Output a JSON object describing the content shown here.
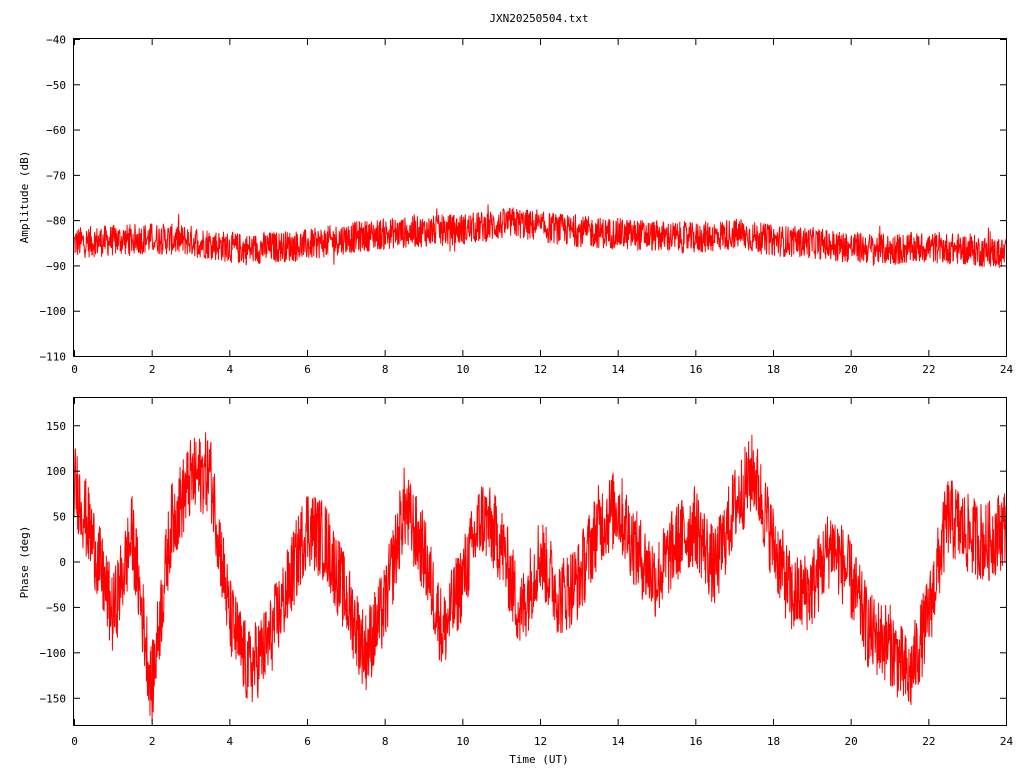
{
  "title": "JXN20250504.txt",
  "chart_data": [
    {
      "type": "line",
      "title": "JXN20250504.txt",
      "xlabel": "",
      "ylabel": "Amplitude (dB)",
      "xlim": [
        0,
        24
      ],
      "ylim": [
        -110,
        -40
      ],
      "xticks": [
        "0",
        "2",
        "4",
        "6",
        "8",
        "10",
        "12",
        "14",
        "16",
        "18",
        "20",
        "22",
        "24"
      ],
      "yticks": [
        "-110",
        "-100",
        "-90",
        "-80",
        "-70",
        "-60",
        "-50",
        "-40"
      ],
      "grid": false,
      "color": "#ff0000",
      "series": [
        {
          "name": "",
          "x": [
            0,
            1,
            2,
            3,
            4,
            4.5,
            5,
            6,
            7,
            8,
            9,
            10,
            10.5,
            11,
            11.3,
            12,
            13,
            14,
            15,
            16,
            17,
            18,
            19,
            20,
            21,
            22,
            23,
            24
          ],
          "y": [
            -85,
            -84.5,
            -84,
            -84.5,
            -86,
            -86.5,
            -86,
            -85.5,
            -84,
            -83,
            -82.5,
            -82,
            -81.5,
            -81,
            -80.5,
            -81.5,
            -82.5,
            -83,
            -83.5,
            -84,
            -83,
            -84.5,
            -85,
            -86,
            -86.5,
            -86,
            -86.5,
            -87.5
          ]
        }
      ]
    },
    {
      "type": "line",
      "xlabel": "Time (UT)",
      "ylabel": "Phase (deg)",
      "xlim": [
        0,
        24
      ],
      "ylim": [
        -180,
        180
      ],
      "xticks": [
        "0",
        "2",
        "4",
        "6",
        "8",
        "10",
        "12",
        "14",
        "16",
        "18",
        "20",
        "22",
        "24"
      ],
      "yticks": [
        "-150",
        "-100",
        "-50",
        "0",
        "50",
        "100",
        "150"
      ],
      "grid": false,
      "color": "#ff0000",
      "wrapped_range": [
        -180,
        180
      ],
      "series": [
        {
          "name": "",
          "x": [
            0,
            0.5,
            1,
            1.5,
            2,
            2.5,
            3,
            3.5,
            4,
            4.5,
            5,
            5.5,
            6,
            6.5,
            7,
            7.5,
            8,
            8.5,
            9,
            9.5,
            10,
            10.5,
            11,
            11.5,
            12,
            12.5,
            13,
            13.5,
            14,
            14.5,
            15,
            15.5,
            16,
            16.5,
            17,
            17.5,
            18,
            18.5,
            19,
            19.5,
            20,
            20.5,
            21,
            21.5,
            22,
            22.5,
            23,
            23.5,
            24
          ],
          "y": [
            90,
            20,
            -60,
            30,
            -140,
            40,
            90,
            100,
            -60,
            -120,
            -90,
            -30,
            40,
            20,
            -40,
            -100,
            -50,
            60,
            10,
            -80,
            -20,
            50,
            20,
            -60,
            10,
            -40,
            -20,
            40,
            60,
            10,
            -20,
            20,
            40,
            -10,
            60,
            100,
            20,
            -40,
            -30,
            20,
            -20,
            -80,
            -90,
            -130,
            -60,
            50,
            30,
            20,
            40
          ]
        }
      ]
    }
  ]
}
